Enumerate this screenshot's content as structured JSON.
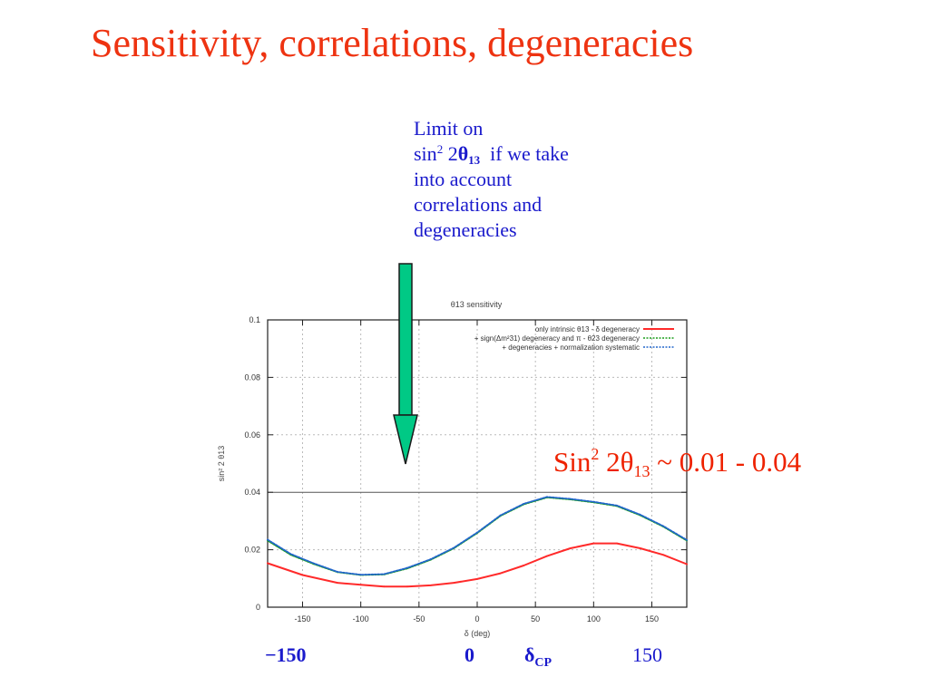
{
  "slide": {
    "title": "Sensitivity, correlations, degeneracies"
  },
  "annotation": {
    "line1": "Limit on",
    "line2_prefix": "sin",
    "line2_sup": "2",
    "line2_mid": " 2",
    "line2_theta": "θ",
    "line2_sub": "13",
    "line2_suffix": "  if we take",
    "line3": "into account",
    "line4": "correlations and",
    "line5": "degeneracies"
  },
  "result": {
    "prefix": "Sin",
    "sup": "2",
    "mid": " 2θ",
    "sub": "13",
    "suffix": " ~ 0.01 - 0.04"
  },
  "footer": {
    "left": "−150",
    "zero": "0",
    "delta": "δ",
    "delta_sub": "CP",
    "right": "150"
  },
  "colors": {
    "title": "#ee3311",
    "annotation": "#1a1acc",
    "result": "#ee2200",
    "arrow_fill": "#00c985",
    "series_red": "#ff2a2a",
    "series_green": "#1a9d1a",
    "series_blue": "#2266cc"
  },
  "chart_data": {
    "type": "line",
    "title": "θ13 sensitivity",
    "xlabel": "δ (deg)",
    "ylabel": "sin² 2 θ13",
    "xlim": [
      -180,
      180
    ],
    "ylim": [
      0,
      0.1
    ],
    "xticks": [
      -150,
      -100,
      -50,
      0,
      50,
      100,
      150
    ],
    "yticks": [
      0,
      0.02,
      0.04,
      0.06,
      0.08,
      0.1
    ],
    "ytick_labels": [
      "0",
      "0.02",
      "0.04",
      "0.06",
      "0.08",
      "0.1"
    ],
    "grid": true,
    "legend_position": "top-right",
    "series": [
      {
        "name": "only intrinsic θ13 - δ degeneracy",
        "color": "#ff2a2a",
        "dash": "solid",
        "x": [
          -180,
          -150,
          -120,
          -100,
          -80,
          -60,
          -40,
          -20,
          0,
          20,
          40,
          60,
          80,
          100,
          120,
          140,
          160,
          180
        ],
        "y": [
          0.0153,
          0.0112,
          0.0085,
          0.0078,
          0.0072,
          0.0072,
          0.0076,
          0.0085,
          0.0098,
          0.0118,
          0.0145,
          0.0178,
          0.0205,
          0.0222,
          0.0222,
          0.0205,
          0.0182,
          0.015
        ]
      },
      {
        "name": "+ sign(Δm²31) degeneracy and π - θ23 degeneracy",
        "color": "#1a9d1a",
        "dash": "dotted",
        "x": [
          -180,
          -160,
          -140,
          -120,
          -100,
          -80,
          -60,
          -40,
          -20,
          0,
          20,
          40,
          60,
          80,
          100,
          120,
          140,
          160,
          180
        ],
        "y": [
          0.0232,
          0.0182,
          0.015,
          0.0122,
          0.0112,
          0.0114,
          0.0135,
          0.0165,
          0.0205,
          0.0258,
          0.0318,
          0.0358,
          0.0382,
          0.0375,
          0.0365,
          0.0352,
          0.032,
          0.028,
          0.0232
        ]
      },
      {
        "name": "+ degeneracies + normalization systematic",
        "color": "#2266cc",
        "dash": "dotted",
        "x": [
          -180,
          -160,
          -140,
          -120,
          -100,
          -80,
          -60,
          -40,
          -20,
          0,
          20,
          40,
          60,
          80,
          100,
          120,
          140,
          160,
          180
        ],
        "y": [
          0.0235,
          0.0185,
          0.0152,
          0.0123,
          0.0113,
          0.0115,
          0.0137,
          0.0167,
          0.0207,
          0.026,
          0.032,
          0.036,
          0.0384,
          0.0377,
          0.0367,
          0.0354,
          0.0322,
          0.0282,
          0.0234
        ]
      }
    ]
  }
}
